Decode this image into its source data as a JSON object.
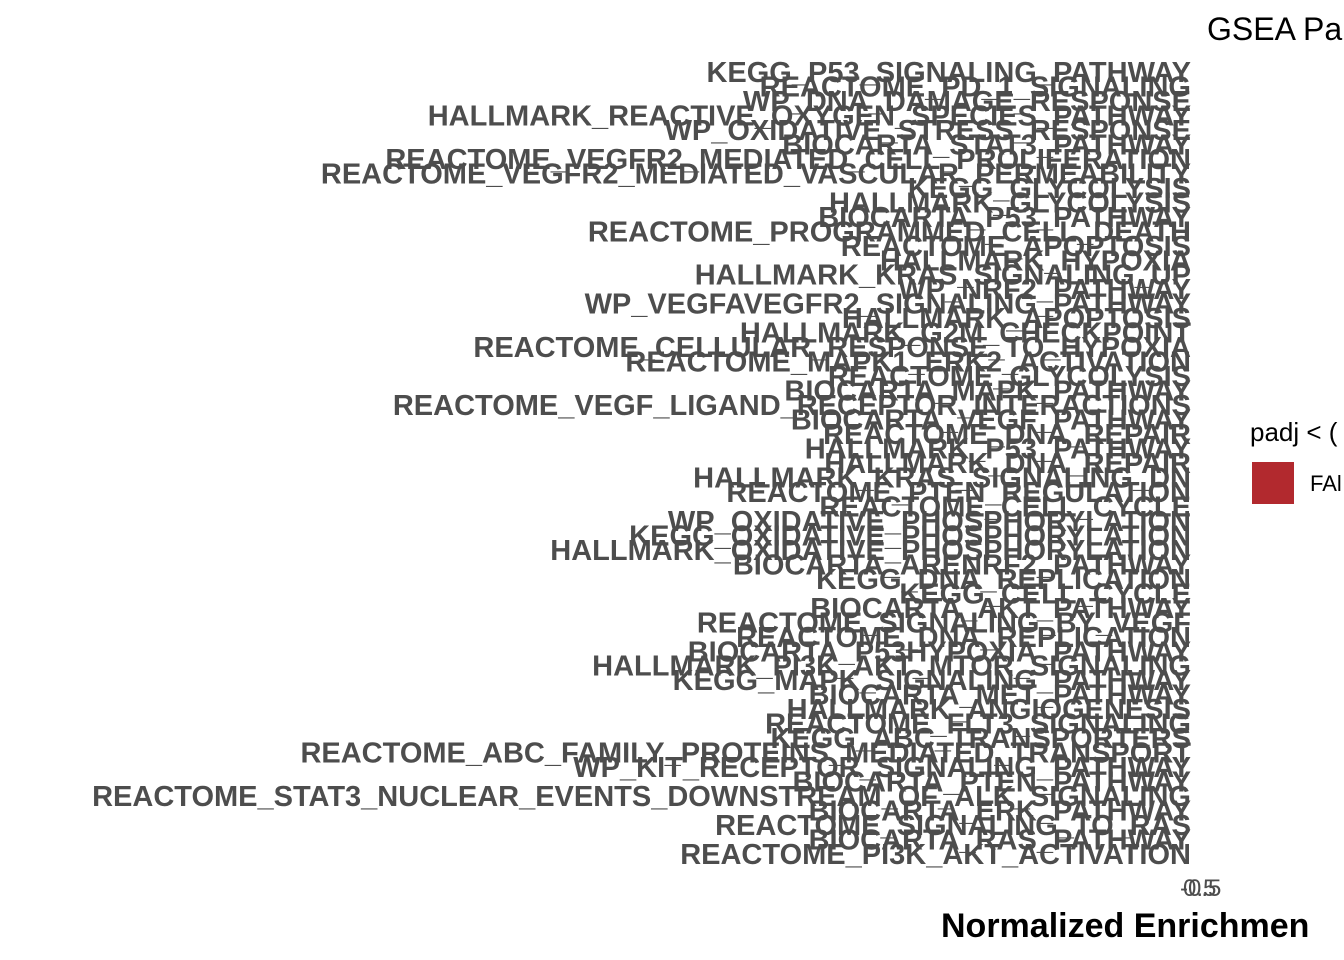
{
  "chart_data": {
    "type": "bar",
    "orientation": "horizontal",
    "title": "GSEA Pa",
    "xlabel": "Normalized Enrichmen",
    "ylabel": "",
    "x_ticks": [
      "-0.5",
      "0.5"
    ],
    "categories": [
      "KEGG_P53_SIGNALING_PATHWAY",
      "REACTOME_PD_1_SIGNALING",
      "WP_DNA_DAMAGE_RESPONSE",
      "HALLMARK_REACTIVE_OXYGEN_SPECIES_PATHWAY",
      "WP_OXIDATIVE_STRESS_RESPONSE",
      "BIOCARTA_STAT3_PATHWAY",
      "REACTOME_VEGFR2_MEDIATED_CELL_PROLIFERATION",
      "REACTOME_VEGFR2_MEDIATED_VASCULAR_PERMEABILITY",
      "KEGG_GLYCOLYSIS",
      "HALLMARK_GLYCOLYSIS",
      "BIOCARTA_P53_PATHWAY",
      "REACTOME_PROGRAMMED_CELL_DEATH",
      "REACTOME_APOPTOSIS",
      "HALLMARK_HYPOXIA",
      "HALLMARK_KRAS_SIGNALING_UP",
      "WP_NRF2_PATHWAY",
      "WP_VEGFAVEGFR2_SIGNALING_PATHWAY",
      "HALLMARK_APOPTOSIS",
      "HALLMARK_G2M_CHECKPOINT",
      "REACTOME_CELLULAR_RESPONSE_TO_HYPOXIA",
      "REACTOME_MAPK1_ERK2_ACTIVATION",
      "REACTOME_GLYCOLYSIS",
      "BIOCARTA_MAPK_PATHWAY",
      "REACTOME_VEGF_LIGAND_RECEPTOR_INTERACTIONS",
      "BIOCARTA_VEGF_PATHWAY",
      "REACTOME_DNA_REPAIR",
      "HALLMARK_P53_PATHWAY",
      "HALLMARK_DNA_REPAIR",
      "HALLMARK_KRAS_SIGNALING_DN",
      "REACTOME_PTEN_REGULATION",
      "REACTOME_CELL_CYCLE",
      "WP_OXIDATIVE_PHOSPHORYLATION",
      "KEGG_OXIDATIVE_PHOSPHORYLATION",
      "HALLMARK_OXIDATIVE_PHOSPHORYLATION",
      "BIOCARTA_ARENRF2_PATHWAY",
      "KEGG_DNA_REPLICATION",
      "KEGG_CELL_CYCLE",
      "BIOCARTA_AKT_PATHWAY",
      "REACTOME_SIGNALING_BY_VEGF",
      "REACTOME_DNA_REPLICATION",
      "BIOCARTA_P53HYPOXIA_PATHWAY",
      "HALLMARK_PI3K_AKT_MTOR_SIGNALING",
      "KEGG_MAPK_SIGNALING_PATHWAY",
      "BIOCARTA_MET_PATHWAY",
      "HALLMARK_ANGIOGENESIS",
      "REACTOME_FLT3_SIGNALING",
      "KEGG_ABC_TRANSPORTERS",
      "REACTOME_ABC_FAMILY_PROTEINS_MEDIATED_TRANSPORT",
      "WP_KIT_RECEPTOR_SIGNALING_PATHWAY",
      "BIOCARTA_PTEN_PATHWAY",
      "REACTOME_STAT3_NUCLEAR_EVENTS_DOWNSTREAM_OF_ALK_SIGNALING",
      "BIOCARTA_ERK_PATHWAY",
      "REACTOME_SIGNALING_TO_RAS",
      "BIOCARTA_RAS_PATHWAY",
      "REACTOME_PI3K_AKT_ACTIVATION"
    ],
    "legend": {
      "title": "padj < (",
      "entries": [
        {
          "label": "FAl",
          "color": "#b2292e"
        }
      ],
      "placement": "right"
    },
    "colors": {
      "category_text": "#4d4d4d",
      "fill": "#b2292e"
    },
    "grid": false
  }
}
